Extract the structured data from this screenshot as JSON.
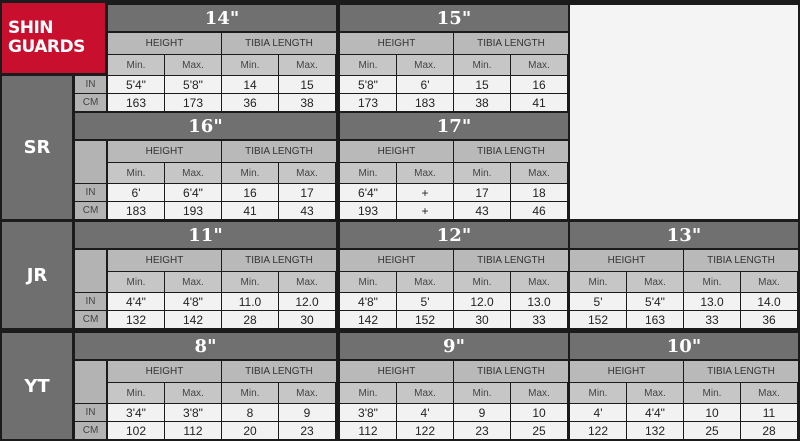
{
  "title": "SHIN GUARDS",
  "headers": {
    "height": "HEIGHT",
    "tibia": "TIBIA LENGTH",
    "min": "Min.",
    "max": "Max.",
    "in": "IN",
    "cm": "CM"
  },
  "colors": {
    "brand": "#c8102e",
    "header": "#707070",
    "cell": "#f2f2f2"
  },
  "sections": [
    {
      "label": "SR",
      "rows": [
        {
          "sizes": [
            {
              "size": "14\"",
              "in": [
                "5'4\"",
                "5'8\"",
                "14",
                "15"
              ],
              "cm": [
                "163",
                "173",
                "36",
                "38"
              ]
            },
            {
              "size": "15\"",
              "in": [
                "5'8\"",
                "6'",
                "15",
                "16"
              ],
              "cm": [
                "173",
                "183",
                "38",
                "41"
              ]
            }
          ]
        },
        {
          "sizes": [
            {
              "size": "16\"",
              "in": [
                "6'",
                "6'4\"",
                "16",
                "17"
              ],
              "cm": [
                "183",
                "193",
                "41",
                "43"
              ]
            },
            {
              "size": "17\"",
              "in": [
                "6'4\"",
                "+",
                "17",
                "18"
              ],
              "cm": [
                "193",
                "+",
                "43",
                "46"
              ]
            }
          ]
        }
      ]
    },
    {
      "label": "JR",
      "rows": [
        {
          "sizes": [
            {
              "size": "11\"",
              "in": [
                "4'4\"",
                "4'8\"",
                "11.0",
                "12.0"
              ],
              "cm": [
                "132",
                "142",
                "28",
                "30"
              ]
            },
            {
              "size": "12\"",
              "in": [
                "4'8\"",
                "5'",
                "12.0",
                "13.0"
              ],
              "cm": [
                "142",
                "152",
                "30",
                "33"
              ]
            },
            {
              "size": "13\"",
              "in": [
                "5'",
                "5'4\"",
                "13.0",
                "14.0"
              ],
              "cm": [
                "152",
                "163",
                "33",
                "36"
              ]
            }
          ]
        }
      ]
    },
    {
      "label": "YT",
      "rows": [
        {
          "sizes": [
            {
              "size": "8\"",
              "in": [
                "3'4\"",
                "3'8\"",
                "8",
                "9"
              ],
              "cm": [
                "102",
                "112",
                "20",
                "23"
              ]
            },
            {
              "size": "9\"",
              "in": [
                "3'8\"",
                "4'",
                "9",
                "10"
              ],
              "cm": [
                "112",
                "122",
                "23",
                "25"
              ]
            },
            {
              "size": "10\"",
              "in": [
                "4'",
                "4'4\"",
                "10",
                "11"
              ],
              "cm": [
                "122",
                "132",
                "25",
                "28"
              ]
            }
          ]
        }
      ]
    }
  ]
}
